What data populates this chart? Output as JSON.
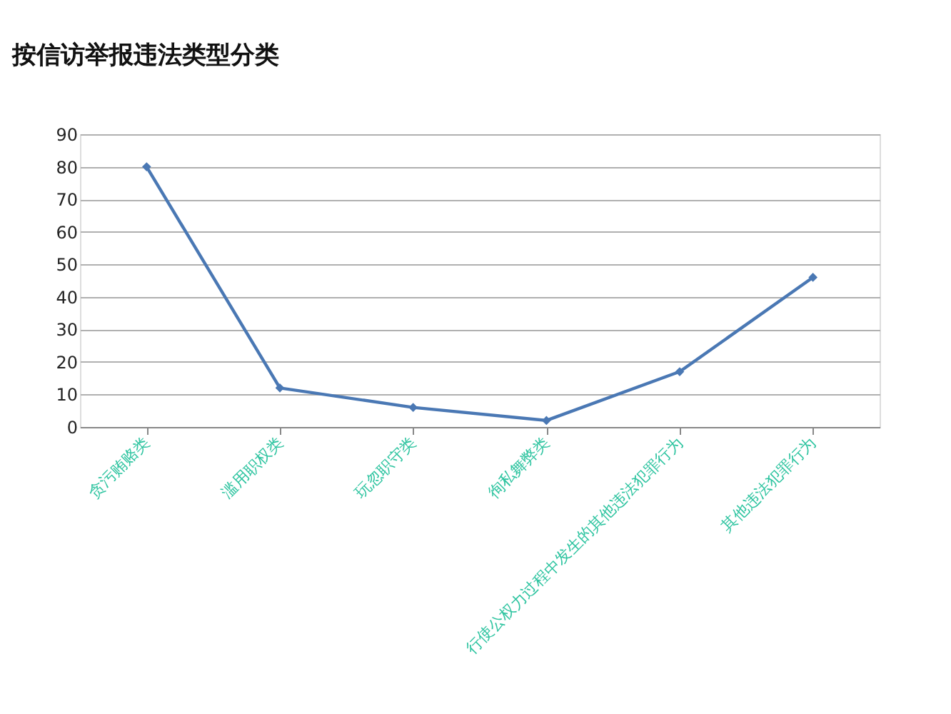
{
  "chart_data": {
    "type": "line",
    "title": "按信访举报违法类型分类",
    "categories": [
      "贪污贿赂类",
      "滥用职权类",
      "玩忽职守类",
      "徇私舞弊类",
      "行使公权力过程中发生的其他违法犯罪行为",
      "其他违法犯罪行为"
    ],
    "series": [
      {
        "color": "#4a78b4",
        "values": [
          80,
          12,
          6,
          2,
          17,
          46
        ]
      }
    ],
    "ylim": [
      0,
      90
    ],
    "yticks": [
      0,
      10,
      20,
      30,
      40,
      50,
      60,
      70,
      80,
      90
    ],
    "grid": "y",
    "marker": "diamond",
    "line_style": "solid"
  }
}
